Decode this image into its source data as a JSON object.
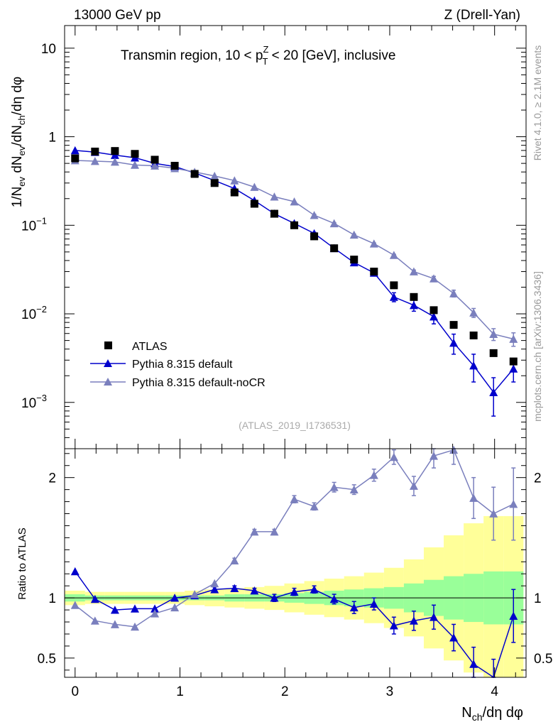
{
  "header": {
    "left": "13000 GeV pp",
    "right": "Z (Drell-Yan)"
  },
  "side_labels": {
    "rivet": "Rivet 4.1.0, ≥ 2.1M events",
    "mcplots": "mcplots.cern.ch [arXiv:1306.3436]"
  },
  "chart_data": [
    {
      "name": "main",
      "type": "scatter",
      "title": "Transmin region, 10 < pT^Z < 20 [GeV], inclusive",
      "title_parts": {
        "prefix": "Transmin region, 10 < p",
        "sup": "Z",
        "sub": "T",
        "suffix": " < 20 [GeV], inclusive"
      },
      "ylabel": "1/N_ev dN_ev/dN_ch/dη dφ",
      "yscale": "log",
      "ylim": [
        0.0003,
        18
      ],
      "xlim": [
        -0.1,
        4.3
      ],
      "yticks": [
        {
          "value": 10,
          "label": "10"
        },
        {
          "value": 1,
          "label": "1"
        },
        {
          "value": 0.1,
          "label": "10",
          "exp": "−1"
        },
        {
          "value": 0.01,
          "label": "10",
          "exp": "−2"
        },
        {
          "value": 0.001,
          "label": "10",
          "exp": "−3"
        }
      ],
      "watermark": "(ATLAS_2019_I1736531)",
      "legend_position": "bottom-left",
      "x": [
        0.0,
        0.19,
        0.38,
        0.57,
        0.76,
        0.95,
        1.14,
        1.33,
        1.52,
        1.71,
        1.9,
        2.09,
        2.28,
        2.47,
        2.66,
        2.85,
        3.04,
        3.23,
        3.42,
        3.61,
        3.8,
        3.99,
        4.18
      ],
      "series": [
        {
          "name": "ATLAS",
          "marker": "square",
          "color": "#000000",
          "values": [
            0.57,
            0.68,
            0.69,
            0.64,
            0.55,
            0.47,
            0.38,
            0.3,
            0.235,
            0.175,
            0.135,
            0.1,
            0.075,
            0.055,
            0.041,
            0.03,
            0.021,
            0.0155,
            0.011,
            0.0075,
            0.0057,
            0.0036,
            0.0029
          ]
        },
        {
          "name": "Pythia 8.315 default",
          "marker": "triangle",
          "color": "#0000cc",
          "values": [
            0.7,
            0.67,
            0.62,
            0.58,
            0.5,
            0.46,
            0.39,
            0.32,
            0.26,
            0.19,
            0.135,
            0.105,
            0.081,
            0.055,
            0.038,
            0.029,
            0.0155,
            0.0125,
            0.0093,
            0.0047,
            0.0026,
            0.0013,
            0.0024
          ],
          "errors": [
            0,
            0,
            0,
            0,
            0,
            0,
            0,
            0,
            0,
            0,
            0,
            0.002,
            0.002,
            0.0015,
            0.0015,
            0.001,
            0.0018,
            0.0018,
            0.0016,
            0.0012,
            0.0009,
            0.0006,
            0.0007
          ]
        },
        {
          "name": "Pythia 8.315 default-noCR",
          "marker": "triangle",
          "color": "#7a7fbd",
          "values": [
            0.54,
            0.53,
            0.52,
            0.48,
            0.47,
            0.44,
            0.4,
            0.36,
            0.32,
            0.27,
            0.21,
            0.185,
            0.13,
            0.105,
            0.078,
            0.062,
            0.046,
            0.03,
            0.025,
            0.017,
            0.0103,
            0.0059,
            0.0052
          ],
          "errors": [
            0,
            0,
            0,
            0,
            0,
            0,
            0,
            0,
            0,
            0,
            0,
            0,
            0.003,
            0.002,
            0.0015,
            0.0012,
            0.001,
            0.0012,
            0.0015,
            0.0015,
            0.0012,
            0.0009,
            0.0009
          ]
        }
      ]
    },
    {
      "name": "ratio",
      "type": "scatter",
      "ylabel": "Ratio to ATLAS",
      "xlabel": "N_ch/dη dφ",
      "xlim": [
        -0.1,
        4.3
      ],
      "ylim": [
        0.34,
        2.24
      ],
      "yticks": [
        0.5,
        1,
        2
      ],
      "xticks": [
        0,
        1,
        2,
        3,
        4
      ],
      "ref_line": 1,
      "band_yellow": [
        0.06,
        0.05,
        0.05,
        0.05,
        0.05,
        0.05,
        0.06,
        0.07,
        0.08,
        0.09,
        0.1,
        0.12,
        0.14,
        0.16,
        0.18,
        0.21,
        0.25,
        0.32,
        0.42,
        0.52,
        0.62,
        0.68,
        0.68
      ],
      "band_green": [
        0.03,
        0.02,
        0.02,
        0.02,
        0.02,
        0.02,
        0.02,
        0.02,
        0.03,
        0.03,
        0.03,
        0.04,
        0.05,
        0.06,
        0.07,
        0.08,
        0.09,
        0.12,
        0.15,
        0.18,
        0.2,
        0.22,
        0.22
      ],
      "series": [
        {
          "name": "Pythia 8.315 default",
          "color": "#0000cc",
          "values": [
            1.22,
            0.99,
            0.9,
            0.91,
            0.91,
            1.0,
            1.02,
            1.07,
            1.08,
            1.06,
            1.0,
            1.05,
            1.07,
            0.99,
            0.92,
            0.95,
            0.77,
            0.81,
            0.84,
            0.67,
            0.45,
            0.33,
            0.85
          ],
          "errors": [
            0,
            0,
            0,
            0,
            0,
            0,
            0,
            0.02,
            0.02,
            0.02,
            0.03,
            0.03,
            0.03,
            0.04,
            0.05,
            0.05,
            0.07,
            0.08,
            0.1,
            0.11,
            0.14,
            0.16,
            0.22
          ]
        },
        {
          "name": "Pythia 8.315 default-noCR",
          "color": "#7a7fbd",
          "values": [
            0.94,
            0.81,
            0.78,
            0.76,
            0.87,
            0.92,
            1.03,
            1.12,
            1.31,
            1.55,
            1.55,
            1.82,
            1.76,
            1.92,
            1.9,
            2.02,
            2.17,
            1.93,
            2.18,
            2.23,
            1.83,
            1.7,
            1.78
          ],
          "errors": [
            0,
            0,
            0,
            0,
            0,
            0,
            0,
            0,
            0.02,
            0.02,
            0.02,
            0.03,
            0.03,
            0.04,
            0.04,
            0.05,
            0.06,
            0.08,
            0.1,
            0.12,
            0.17,
            0.22,
            0.3
          ]
        }
      ]
    }
  ]
}
